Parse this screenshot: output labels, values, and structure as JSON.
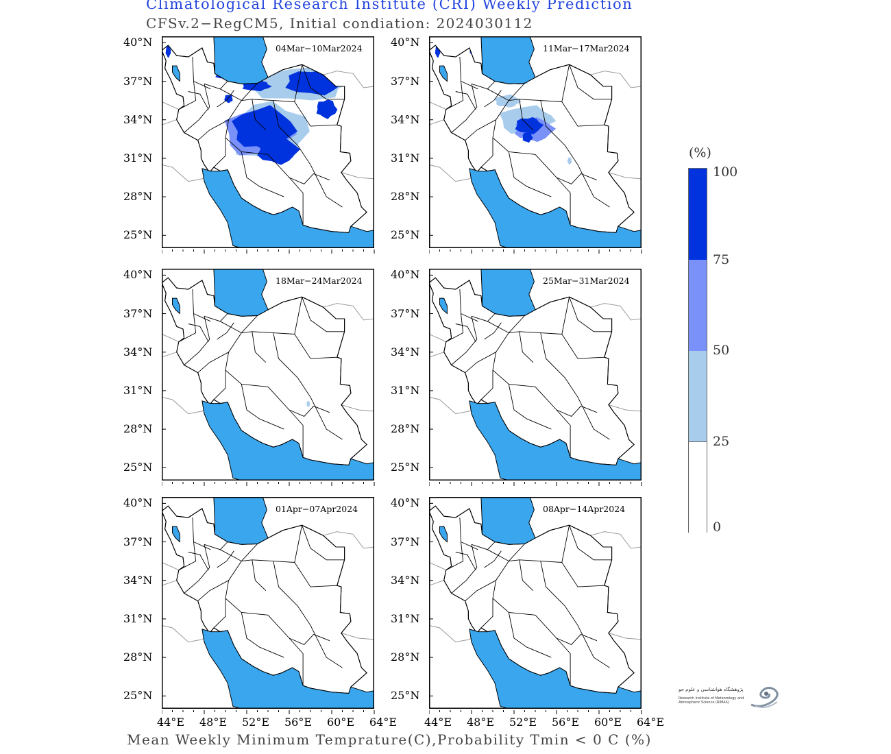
{
  "header": {
    "title": "Climatological Research Institute (CRI) Weekly Prediction",
    "subtitle": "CFSv.2−RegCM5, Initial condiation: 2024030112"
  },
  "footer": "Mean Weekly Minimum Temprature(C),Probability Tmin < 0 C (%)",
  "axes": {
    "lat_labels": [
      "40°N",
      "37°N",
      "34°N",
      "31°N",
      "28°N",
      "25°N"
    ],
    "lon_labels": [
      "44°E",
      "48°E",
      "52°E",
      "56°E",
      "60°E",
      "64°E"
    ],
    "lat_range": [
      24,
      40.5
    ],
    "lon_range": [
      44,
      64
    ]
  },
  "panels": [
    {
      "label": "04Mar−10Mar2024",
      "intensity": "high"
    },
    {
      "label": "11Mar−17Mar2024",
      "intensity": "medium"
    },
    {
      "label": "18Mar−24Mar2024",
      "intensity": "low"
    },
    {
      "label": "25Mar−31Mar2024",
      "intensity": "none"
    },
    {
      "label": "01Apr−07Apr2024",
      "intensity": "none"
    },
    {
      "label": "08Apr−14Apr2024",
      "intensity": "none"
    }
  ],
  "colorbar": {
    "unit": "(%)",
    "ticks": [
      "100",
      "75",
      "50",
      "25",
      "0"
    ],
    "bins": [
      {
        "range": "75-100",
        "color": "#0033dd"
      },
      {
        "range": "50-75",
        "color": "#7a91fa"
      },
      {
        "range": "25-50",
        "color": "#a8ccec"
      },
      {
        "range": "0-25",
        "color": "#ffffff"
      }
    ]
  },
  "colors": {
    "sea": "#3aa6ee",
    "title": "#2244dd"
  },
  "logo": {
    "farsi_text": "پژوهشگاه هواشناسی و علوم جو",
    "english_text": "Research Institute of Meteorology and Atmospheric Science (RIMAS)"
  }
}
